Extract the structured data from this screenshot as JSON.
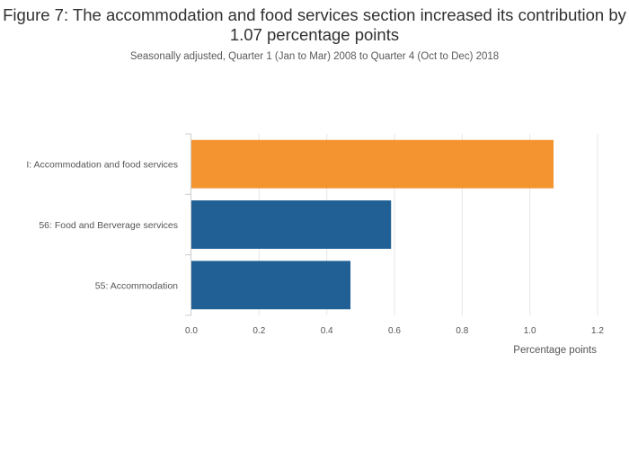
{
  "chart_data": {
    "type": "bar",
    "orientation": "horizontal",
    "title": "Figure 7: The accommodation and food services section increased its contribution by 1.07 percentage points",
    "subtitle": "Seasonally adjusted, Quarter 1 (Jan to Mar) 2008 to Quarter 4 (Oct to Dec) 2018",
    "categories": [
      "I: Accommodation and food services",
      "56: Food and Berverage services",
      "55: Accommodation"
    ],
    "values": [
      1.07,
      0.59,
      0.47
    ],
    "colors": [
      "#f39431",
      "#206095",
      "#206095"
    ],
    "xlabel": "Percentage points",
    "ylabel": "",
    "xlim": [
      0,
      1.2
    ],
    "xticks": [
      0,
      0.2,
      0.4,
      0.6,
      0.8,
      1.0,
      1.2
    ],
    "xtick_labels": [
      "0.0",
      "0.2",
      "0.4",
      "0.6",
      "0.8",
      "1.0",
      "1.2"
    ],
    "grid": true
  }
}
